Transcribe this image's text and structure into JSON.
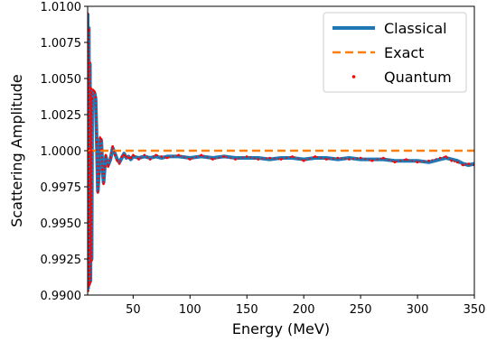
{
  "chart_data": {
    "type": "line",
    "title": "",
    "xlabel": "Energy (MeV)",
    "ylabel": "Scattering Amplitude",
    "xlim": [
      10,
      350
    ],
    "ylim": [
      0.99,
      1.01
    ],
    "xticks": [
      50,
      100,
      150,
      200,
      250,
      300,
      350
    ],
    "xtick_labels": [
      "50",
      "100",
      "150",
      "200",
      "250",
      "300",
      "350"
    ],
    "yticks": [
      0.99,
      0.9925,
      0.995,
      0.9975,
      1.0,
      1.0025,
      1.005,
      1.0075,
      1.01
    ],
    "ytick_labels": [
      "0.9900",
      "0.9925",
      "0.9950",
      "0.9975",
      "1.0000",
      "1.0025",
      "1.0050",
      "1.0075",
      "1.0100"
    ],
    "grid": false,
    "legend_position": "top-right",
    "series": [
      {
        "name": "Classical",
        "style": "solid",
        "color": "#1f77b4",
        "x": [
          10,
          10.5,
          11,
          11.5,
          12,
          12.5,
          13,
          13.5,
          14,
          15,
          16,
          17,
          18,
          19,
          20,
          21,
          22,
          23,
          24,
          25,
          26,
          28,
          30,
          32,
          34,
          36,
          38,
          40,
          42,
          44,
          46,
          48,
          50,
          55,
          60,
          65,
          70,
          75,
          80,
          90,
          100,
          110,
          120,
          130,
          140,
          150,
          160,
          170,
          180,
          190,
          200,
          210,
          220,
          230,
          240,
          250,
          260,
          270,
          280,
          290,
          300,
          310,
          320,
          325,
          330,
          335,
          340,
          345,
          350
        ],
        "y": [
          1.0095,
          0.9905,
          1.0085,
          0.9908,
          1.006,
          0.991,
          1.0042,
          0.9925,
          1.0035,
          1.0041,
          1.004,
          1.0036,
          1.0005,
          0.9972,
          0.9985,
          1.0008,
          1.0007,
          0.9988,
          0.9978,
          0.9988,
          0.9996,
          0.999,
          0.9994,
          1.0002,
          0.9998,
          0.9994,
          0.9992,
          0.9995,
          0.9998,
          0.9995,
          0.9996,
          0.9994,
          0.9996,
          0.9995,
          0.9996,
          0.9995,
          0.9996,
          0.9995,
          0.9996,
          0.9996,
          0.9995,
          0.9996,
          0.9995,
          0.9996,
          0.9995,
          0.9995,
          0.9995,
          0.9994,
          0.9995,
          0.9995,
          0.9994,
          0.9995,
          0.9995,
          0.9994,
          0.9995,
          0.9994,
          0.9994,
          0.9994,
          0.9993,
          0.9993,
          0.9993,
          0.9992,
          0.9994,
          0.9995,
          0.9994,
          0.9993,
          0.9991,
          0.999,
          0.9991
        ]
      },
      {
        "name": "Exact",
        "style": "dashed",
        "color": "#ff7f0e",
        "x": [
          10,
          350
        ],
        "y": [
          1.0,
          1.0
        ]
      },
      {
        "name": "Quantum",
        "style": "dotted-markers",
        "color": "#ff0000",
        "x": [
          10,
          10.5,
          11,
          11.5,
          12,
          12.5,
          13,
          13.5,
          14,
          15,
          16,
          17,
          18,
          19,
          20,
          21,
          22,
          23,
          24,
          25,
          26,
          28,
          30,
          32,
          34,
          36,
          38,
          40,
          42,
          44,
          46,
          48,
          50,
          55,
          60,
          65,
          70,
          75,
          80,
          90,
          100,
          110,
          120,
          130,
          140,
          150,
          160,
          170,
          180,
          190,
          200,
          210,
          220,
          230,
          240,
          250,
          260,
          270,
          280,
          290,
          300,
          310,
          320,
          325,
          330,
          335,
          340,
          345,
          350
        ],
        "y": [
          1.0095,
          0.9903,
          1.0084,
          0.9907,
          1.0061,
          0.9909,
          1.0043,
          0.9924,
          1.0036,
          1.0042,
          1.0041,
          1.0037,
          1.0006,
          0.9971,
          0.9984,
          1.0009,
          1.0008,
          0.9987,
          0.9977,
          0.9989,
          0.9997,
          0.9989,
          0.9995,
          1.0003,
          0.9997,
          0.9993,
          0.9991,
          0.9996,
          0.9997,
          0.9996,
          0.9995,
          0.9995,
          0.9997,
          0.9994,
          0.9997,
          0.9994,
          0.9997,
          0.9996,
          0.9995,
          0.9997,
          0.9994,
          0.9997,
          0.9994,
          0.9996,
          0.9994,
          0.9996,
          0.9994,
          0.9995,
          0.9994,
          0.9996,
          0.9993,
          0.9996,
          0.9994,
          0.9995,
          0.9994,
          0.9995,
          0.9993,
          0.9995,
          0.9992,
          0.9994,
          0.9992,
          0.9993,
          0.9995,
          0.9996,
          0.9993,
          0.9992,
          0.999,
          0.9991,
          0.999
        ]
      }
    ]
  }
}
